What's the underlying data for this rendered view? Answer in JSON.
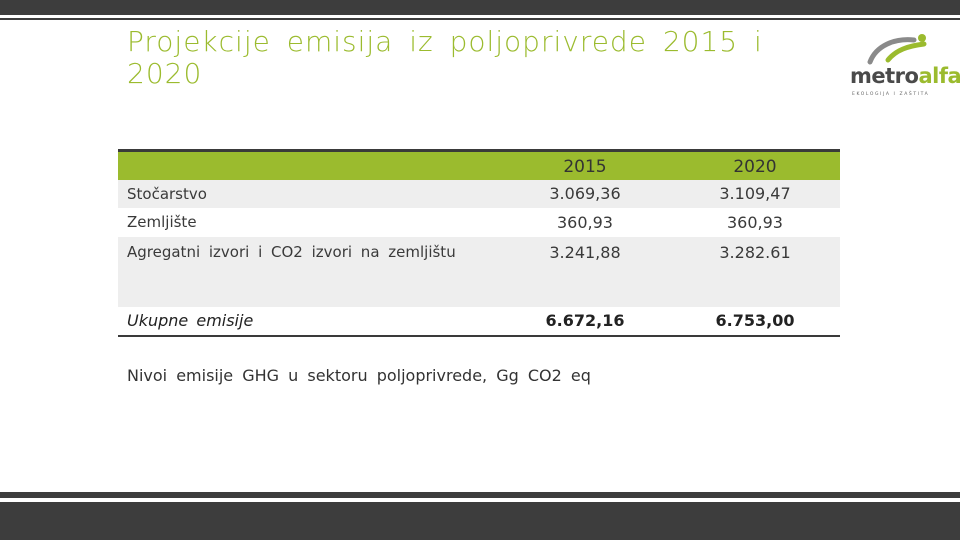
{
  "slide": {
    "title": "Projekcije emisija iz poljoprivrede 2015 i 2020",
    "caption": "Nivoi emisije GHG u sektoru poljoprivrede, Gg CO2 eq"
  },
  "logo": {
    "brand_part1": "metro",
    "brand_part2": "alfa",
    "tagline": "EKOLOGIJA I ZAŠTITA"
  },
  "table": {
    "columns": [
      "",
      "2015",
      "2020"
    ],
    "rows": [
      {
        "label": "Stočarstvo",
        "v2015": "3.069,36",
        "v2020": "3.109,47"
      },
      {
        "label": "Zemljište",
        "v2015": "360,93",
        "v2020": "360,93"
      },
      {
        "label": "Agregatni izvori i CO2 izvori na zemljištu",
        "v2015": "3.241,88",
        "v2020": "3.282.61"
      },
      {
        "label": "Ukupne emisije",
        "v2015": "6.672,16",
        "v2020": "6.753,00"
      }
    ]
  },
  "colors": {
    "accent": "#9bbb2e",
    "dark_bar": "#3d3d3d",
    "row_shade": "#eeeeee"
  }
}
